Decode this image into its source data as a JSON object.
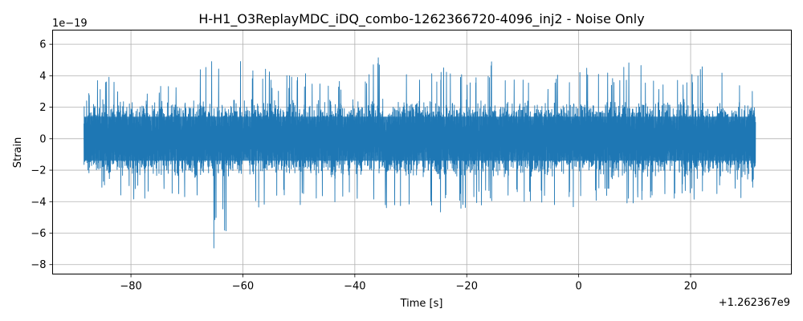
{
  "chart_data": {
    "type": "line",
    "title": "H-H1_O3ReplayMDC_iDQ_combo-1262366720-4096_inj2 - Noise Only",
    "xlabel": "Time [s]",
    "ylabel": "Strain",
    "x_offset_label": "+1.262367e9",
    "y_scale_label": "1e−19",
    "xlim": [
      -94,
      38
    ],
    "ylim": [
      -8.6,
      6.9
    ],
    "x_ticks": [
      -80,
      -60,
      -40,
      -20,
      0,
      20
    ],
    "x_tick_labels": [
      "−80",
      "−60",
      "−40",
      "−20",
      "0",
      "20"
    ],
    "y_ticks": [
      -8,
      -6,
      -4,
      -2,
      0,
      2,
      4,
      6
    ],
    "y_tick_labels": [
      "−8",
      "−6",
      "−4",
      "−2",
      "0",
      "2",
      "4",
      "6"
    ],
    "grid": true,
    "series": [
      {
        "color": "#1f77b4",
        "x_range": [
          -88.4,
          31.6
        ],
        "typical_amplitude": [
          -2.0,
          2.0
        ],
        "envelope_upper": [
          [
            -88,
            2.9
          ],
          [
            -84,
            4.5
          ],
          [
            -80,
            3.0
          ],
          [
            -76,
            3.8
          ],
          [
            -72,
            3.9
          ],
          [
            -70,
            4.2
          ],
          [
            -68,
            4.5
          ],
          [
            -66,
            6.0
          ],
          [
            -64,
            4.8
          ],
          [
            -63,
            6.2
          ],
          [
            -61,
            5.7
          ],
          [
            -58,
            4.3
          ],
          [
            -56,
            4.8
          ],
          [
            -54,
            3.8
          ],
          [
            -50,
            4.4
          ],
          [
            -46,
            4.0
          ],
          [
            -42,
            4.0
          ],
          [
            -38,
            4.4
          ],
          [
            -35,
            5.8
          ],
          [
            -32,
            4.2
          ],
          [
            -28,
            4.2
          ],
          [
            -24,
            4.6
          ],
          [
            -20,
            4.3
          ],
          [
            -16,
            5.0
          ],
          [
            -13,
            4.6
          ],
          [
            -10,
            4.3
          ],
          [
            -6,
            3.7
          ],
          [
            -2,
            4.5
          ],
          [
            2,
            4.8
          ],
          [
            6,
            4.4
          ],
          [
            10,
            5.2
          ],
          [
            14,
            4.1
          ],
          [
            18,
            4.4
          ],
          [
            22,
            4.6
          ],
          [
            26,
            4.2
          ],
          [
            28,
            4.0
          ],
          [
            30,
            4.0
          ],
          [
            31.5,
            3.5
          ]
        ],
        "envelope_lower": [
          [
            -88,
            -2.2
          ],
          [
            -84,
            -3.6
          ],
          [
            -80,
            -3.9
          ],
          [
            -76,
            -4.0
          ],
          [
            -72,
            -3.6
          ],
          [
            -70,
            -3.9
          ],
          [
            -68,
            -3.6
          ],
          [
            -66,
            -5.3
          ],
          [
            -65.5,
            -7.9
          ],
          [
            -64,
            -4.6
          ],
          [
            -63,
            -6.4
          ],
          [
            -61,
            -4.4
          ],
          [
            -58,
            -4.8
          ],
          [
            -56,
            -5.0
          ],
          [
            -54,
            -4.0
          ],
          [
            -50,
            -4.2
          ],
          [
            -46,
            -4.1
          ],
          [
            -42,
            -4.6
          ],
          [
            -38,
            -4.1
          ],
          [
            -35,
            -5.1
          ],
          [
            -30,
            -4.4
          ],
          [
            -26,
            -4.9
          ],
          [
            -22,
            -4.5
          ],
          [
            -18,
            -4.3
          ],
          [
            -14,
            -4.0
          ],
          [
            -10,
            -4.3
          ],
          [
            -6,
            -4.3
          ],
          [
            -2,
            -4.5
          ],
          [
            2,
            -4.1
          ],
          [
            6,
            -3.9
          ],
          [
            10,
            -4.3
          ],
          [
            14,
            -4.1
          ],
          [
            18,
            -3.7
          ],
          [
            22,
            -4.1
          ],
          [
            26,
            -3.8
          ],
          [
            28,
            -3.7
          ],
          [
            30,
            -4.0
          ],
          [
            31.5,
            -2.8
          ]
        ]
      }
    ]
  }
}
